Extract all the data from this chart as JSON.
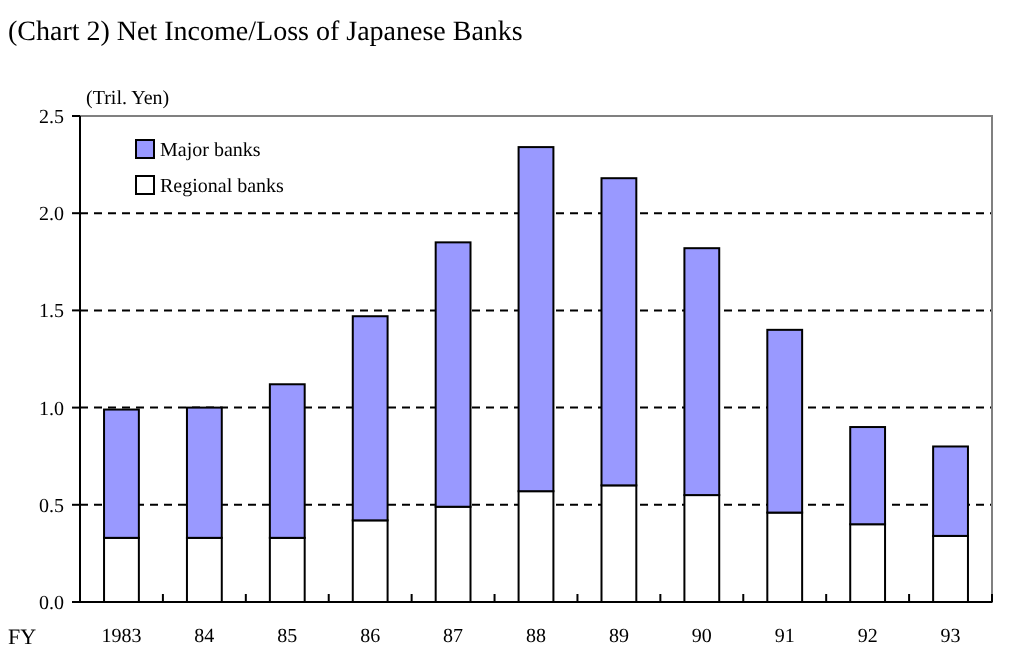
{
  "chart_data": {
    "type": "bar",
    "title": "(Chart 2) Net Income/Loss of Japanese Banks",
    "ylabel": "(Tril. Yen)",
    "xlabel": "FY",
    "categories": [
      "1983",
      "84",
      "85",
      "86",
      "87",
      "88",
      "89",
      "90",
      "91",
      "92",
      "93"
    ],
    "stacked": true,
    "series": [
      {
        "name": "Regional banks",
        "color": "#ffffff",
        "values": [
          0.33,
          0.33,
          0.33,
          0.42,
          0.49,
          0.57,
          0.6,
          0.55,
          0.46,
          0.4,
          0.34
        ]
      },
      {
        "name": "Major banks",
        "color": "#9999ff",
        "values": [
          0.66,
          0.67,
          0.79,
          1.05,
          1.36,
          1.77,
          1.58,
          1.27,
          0.94,
          0.5,
          0.46
        ]
      }
    ],
    "ylim": [
      0,
      2.5
    ],
    "yticks": [
      {
        "value": 0,
        "label": "0.0"
      },
      {
        "value": 0.5,
        "label": "0.5"
      },
      {
        "value": 1,
        "label": "1.0"
      },
      {
        "value": 1.5,
        "label": "1.5"
      },
      {
        "value": 2,
        "label": "2.0"
      },
      {
        "value": 2.5,
        "label": "2.5"
      }
    ],
    "grid": "y",
    "legend": "top left"
  }
}
